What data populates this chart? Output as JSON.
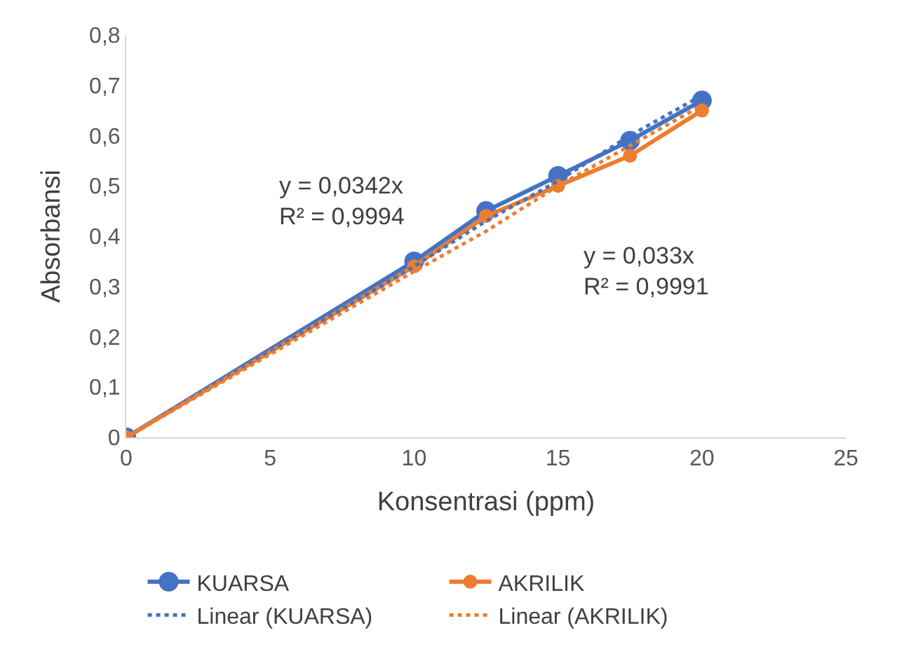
{
  "chart_data": {
    "type": "line",
    "xlabel": "Konsentrasi (ppm)",
    "ylabel": "Absorbansi",
    "x": [
      0,
      10,
      12.5,
      15,
      17.5,
      20
    ],
    "series": [
      {
        "name": "KUARSA",
        "color": "#4472c4",
        "values": [
          0,
          0.35,
          0.45,
          0.52,
          0.59,
          0.67
        ],
        "marker": "circle",
        "line_style": "solid"
      },
      {
        "name": "AKRILIK",
        "color": "#ed7d31",
        "values": [
          0,
          0.34,
          0.44,
          0.5,
          0.56,
          0.65
        ],
        "marker": "circle",
        "line_style": "solid"
      },
      {
        "name": "Linear (KUARSA)",
        "color": "#4472c4",
        "values": [
          0,
          0.34,
          0.43,
          0.51,
          0.6,
          0.68
        ],
        "marker": "none",
        "line_style": "dotted"
      },
      {
        "name": "Linear (AKRILIK)",
        "color": "#ed7d31",
        "values": [
          0,
          0.33,
          0.41,
          0.5,
          0.58,
          0.66
        ],
        "marker": "none",
        "line_style": "dotted"
      }
    ],
    "annotations": [
      "y = 0,0342x\nR² = 0,9994",
      "y = 0,033x\nR² = 0,9991"
    ],
    "xlim": [
      0,
      25
    ],
    "xticks": [
      0,
      5,
      10,
      15,
      20,
      25
    ],
    "ylim": [
      0,
      0.8
    ],
    "yticks": [
      {
        "value": 0,
        "label": "0"
      },
      {
        "value": 0.1,
        "label": "0,1"
      },
      {
        "value": 0.2,
        "label": "0,2"
      },
      {
        "value": 0.3,
        "label": "0,3"
      },
      {
        "value": 0.4,
        "label": "0,4"
      },
      {
        "value": 0.5,
        "label": "0,5"
      },
      {
        "value": 0.6,
        "label": "0,6"
      },
      {
        "value": 0.7,
        "label": "0,7"
      },
      {
        "value": 0.8,
        "label": "0,8"
      }
    ],
    "grid": false,
    "legend": "bottom"
  }
}
